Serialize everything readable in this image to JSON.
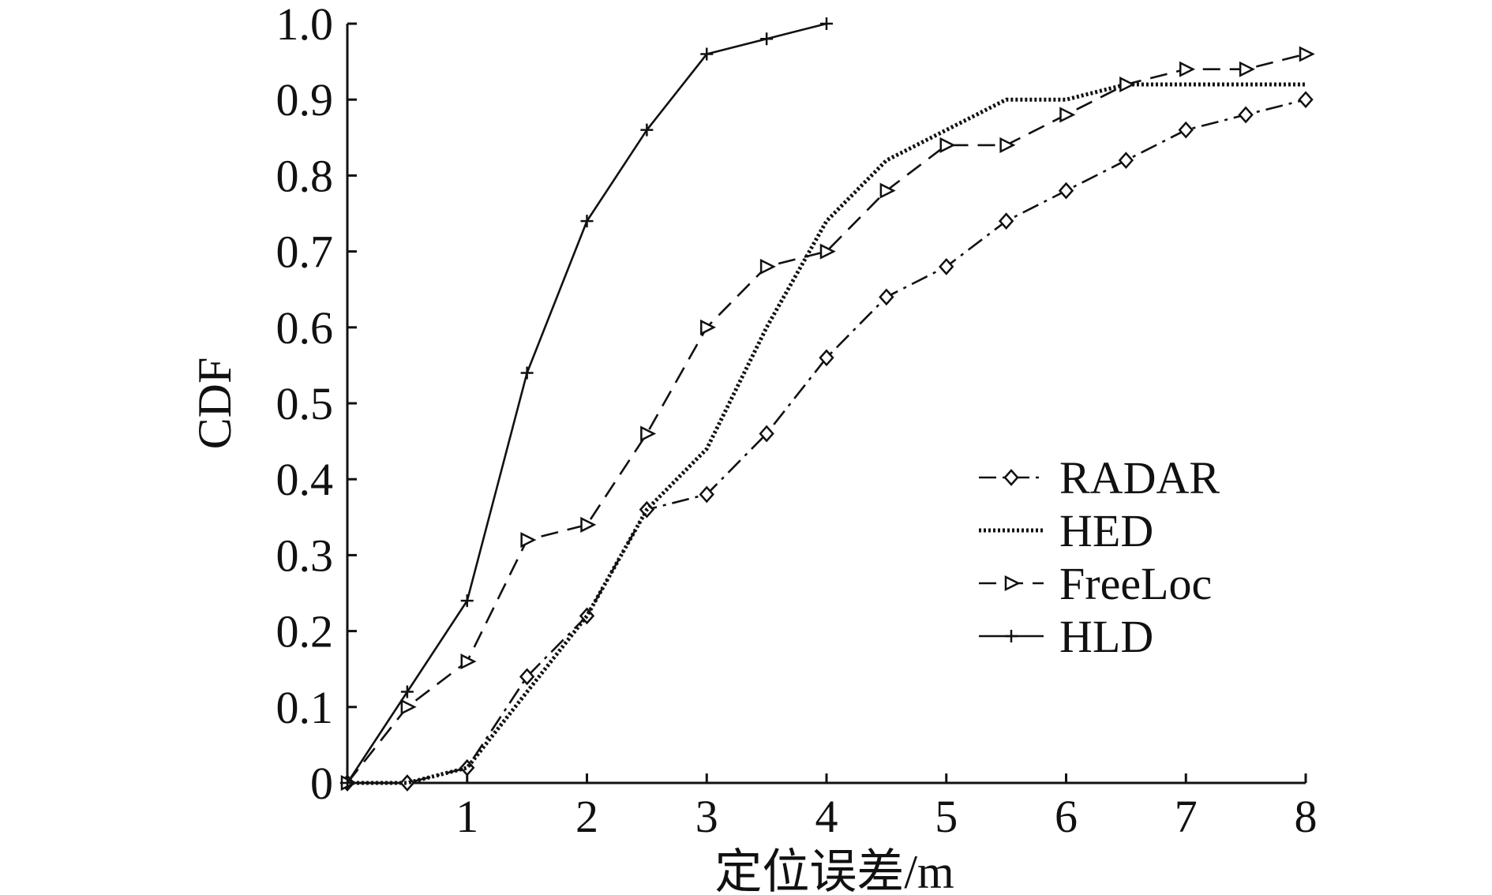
{
  "chart_data": {
    "type": "line",
    "title": "",
    "xlabel": "定位误差/m",
    "ylabel": "CDF",
    "xlim": [
      0,
      8
    ],
    "ylim": [
      0,
      1.0
    ],
    "xticks": [
      1,
      2,
      3,
      4,
      5,
      6,
      7,
      8
    ],
    "xtick_labels": [
      "1",
      "2",
      "3",
      "4",
      "5",
      "6",
      "7",
      "8"
    ],
    "yticks": [
      0,
      0.1,
      0.2,
      0.3,
      0.4,
      0.5,
      0.6,
      0.7,
      0.8,
      0.9,
      1.0
    ],
    "ytick_labels": [
      "0",
      "0.1",
      "0.2",
      "0.3",
      "0.4",
      "0.5",
      "0.6",
      "0.7",
      "0.8",
      "0.9",
      "1.0"
    ],
    "grid": false,
    "legend_position": "center-right",
    "series": [
      {
        "name": "RADAR",
        "style": "dashdot",
        "marker": "diamond",
        "color": "#111111",
        "x": [
          0,
          0.5,
          1,
          1.5,
          2,
          2.5,
          3,
          3.5,
          4,
          4.5,
          5,
          5.5,
          6,
          6.5,
          7,
          7.5,
          8
        ],
        "values": [
          0,
          0,
          0.02,
          0.14,
          0.22,
          0.36,
          0.38,
          0.46,
          0.56,
          0.64,
          0.68,
          0.74,
          0.78,
          0.82,
          0.86,
          0.88,
          0.9
        ]
      },
      {
        "name": "HED",
        "style": "dotted",
        "marker": "none",
        "color": "#111111",
        "x": [
          0,
          0.5,
          1,
          1.5,
          2,
          2.5,
          3,
          3.5,
          4,
          4.5,
          5,
          5.5,
          6,
          6.5,
          7,
          7.5,
          8
        ],
        "values": [
          0,
          0,
          0.02,
          0.12,
          0.22,
          0.36,
          0.44,
          0.6,
          0.74,
          0.82,
          0.86,
          0.9,
          0.9,
          0.92,
          0.92,
          0.92,
          0.92
        ]
      },
      {
        "name": "FreeLoc",
        "style": "dashed",
        "marker": "triangle-right",
        "color": "#111111",
        "x": [
          0,
          0.5,
          1,
          1.5,
          2,
          2.5,
          3,
          3.5,
          4,
          4.5,
          5,
          5.5,
          6,
          6.5,
          7,
          7.5,
          8
        ],
        "values": [
          0,
          0.1,
          0.16,
          0.32,
          0.34,
          0.46,
          0.6,
          0.68,
          0.7,
          0.78,
          0.84,
          0.84,
          0.88,
          0.92,
          0.94,
          0.94,
          0.96
        ]
      },
      {
        "name": "HLD",
        "style": "solid",
        "marker": "plus",
        "color": "#111111",
        "x": [
          0,
          0.5,
          1,
          1.5,
          2,
          2.5,
          3,
          3.5,
          4
        ],
        "values": [
          0,
          0.12,
          0.24,
          0.54,
          0.74,
          0.86,
          0.96,
          0.98,
          1.0
        ]
      }
    ]
  }
}
